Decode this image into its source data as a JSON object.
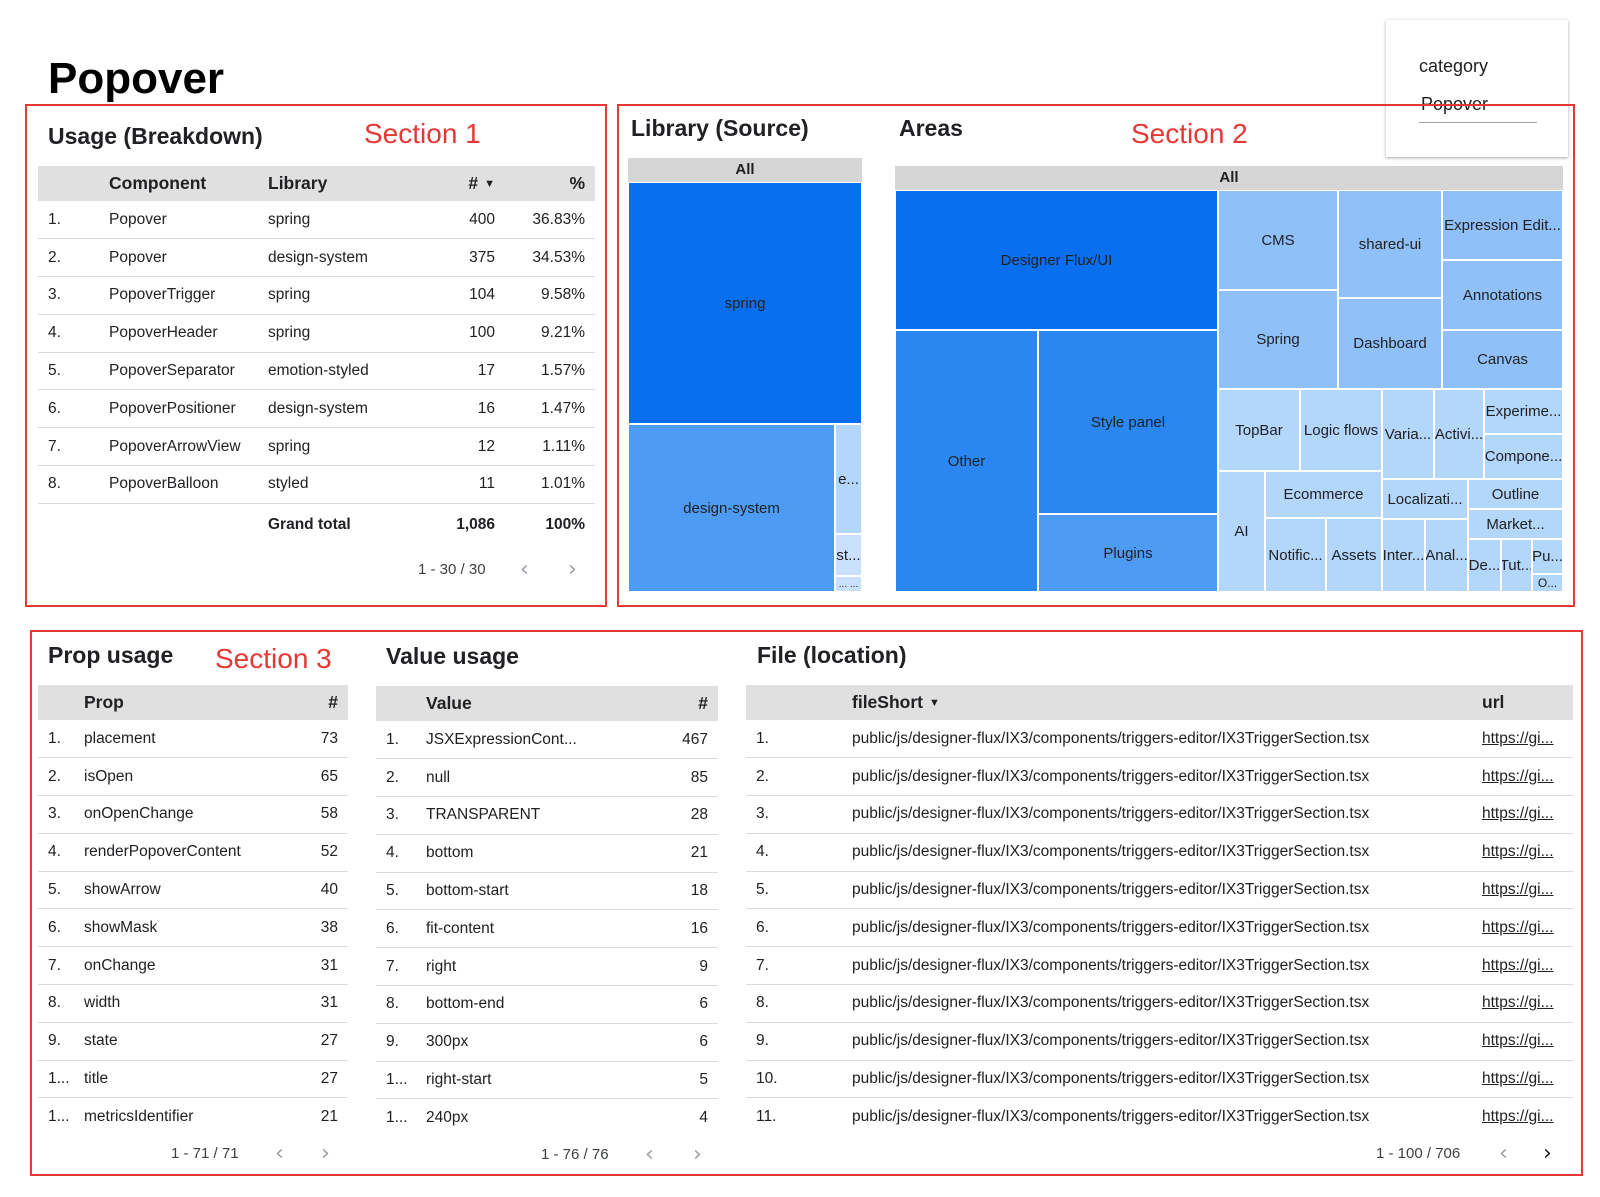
{
  "page": {
    "title": "Popover"
  },
  "filter": {
    "label": "category",
    "value": "Popover"
  },
  "sections": {
    "s1": "Section 1",
    "s2": "Section 2",
    "s3": "Section 3"
  },
  "usage": {
    "title": "Usage (Breakdown)",
    "columns": {
      "component": "Component",
      "library": "Library",
      "count": "#",
      "percent": "%"
    },
    "rows": [
      {
        "idx": "1.",
        "component": "Popover",
        "library": "spring",
        "count": "400",
        "percent": "36.83%"
      },
      {
        "idx": "2.",
        "component": "Popover",
        "library": "design-system",
        "count": "375",
        "percent": "34.53%"
      },
      {
        "idx": "3.",
        "component": "PopoverTrigger",
        "library": "spring",
        "count": "104",
        "percent": "9.58%"
      },
      {
        "idx": "4.",
        "component": "PopoverHeader",
        "library": "spring",
        "count": "100",
        "percent": "9.21%"
      },
      {
        "idx": "5.",
        "component": "PopoverSeparator",
        "library": "emotion-styled",
        "count": "17",
        "percent": "1.57%"
      },
      {
        "idx": "6.",
        "component": "PopoverPositioner",
        "library": "design-system",
        "count": "16",
        "percent": "1.47%"
      },
      {
        "idx": "7.",
        "component": "PopoverArrowView",
        "library": "spring",
        "count": "12",
        "percent": "1.11%"
      },
      {
        "idx": "8.",
        "component": "PopoverBalloon",
        "library": "styled",
        "count": "11",
        "percent": "1.01%"
      }
    ],
    "total": {
      "label": "Grand total",
      "count": "1,086",
      "percent": "100%"
    },
    "pagination": "1 - 30 / 30"
  },
  "library_source": {
    "title": "Library (Source)",
    "root": "All",
    "tiles": {
      "spring": "spring",
      "design_system": "design-system",
      "e": "e...",
      "st": "st...",
      "dots": "... ..."
    }
  },
  "areas": {
    "title": "Areas",
    "root": "All",
    "tiles": {
      "designer_flux": "Designer Flux/UI",
      "other": "Other",
      "style_panel": "Style panel",
      "plugins": "Plugins",
      "cms": "CMS",
      "shared_ui": "shared-ui",
      "expression_edit": "Expression Edit...",
      "annotations": "Annotations",
      "spring": "Spring",
      "dashboard": "Dashboard",
      "canvas": "Canvas",
      "topbar": "TopBar",
      "logic_flows": "Logic flows",
      "varia": "Varia...",
      "activi": "Activi...",
      "experime": "Experime...",
      "compone": "Compone...",
      "ai": "AI",
      "ecommerce": "Ecommerce",
      "localizati": "Localizati...",
      "outline": "Outline",
      "market": "Market...",
      "notific": "Notific...",
      "assets": "Assets",
      "inter": "Inter...",
      "anal": "Anal...",
      "de": "De...",
      "tut": "Tut...",
      "pu": "Pu...",
      "o": "O..."
    }
  },
  "prop_usage": {
    "title": "Prop usage",
    "columns": {
      "prop": "Prop",
      "count": "#"
    },
    "rows": [
      {
        "idx": "1.",
        "name": "placement",
        "count": "73"
      },
      {
        "idx": "2.",
        "name": "isOpen",
        "count": "65"
      },
      {
        "idx": "3.",
        "name": "onOpenChange",
        "count": "58"
      },
      {
        "idx": "4.",
        "name": "renderPopoverContent",
        "count": "52"
      },
      {
        "idx": "5.",
        "name": "showArrow",
        "count": "40"
      },
      {
        "idx": "6.",
        "name": "showMask",
        "count": "38"
      },
      {
        "idx": "7.",
        "name": "onChange",
        "count": "31"
      },
      {
        "idx": "8.",
        "name": "width",
        "count": "31"
      },
      {
        "idx": "9.",
        "name": "state",
        "count": "27"
      },
      {
        "idx": "1...",
        "name": "title",
        "count": "27"
      },
      {
        "idx": "1...",
        "name": "metricsIdentifier",
        "count": "21"
      }
    ],
    "pagination": "1 - 71 / 71"
  },
  "value_usage": {
    "title": "Value usage",
    "columns": {
      "value": "Value",
      "count": "#"
    },
    "rows": [
      {
        "idx": "1.",
        "name": "JSXExpressionCont...",
        "count": "467"
      },
      {
        "idx": "2.",
        "name": "null",
        "count": "85"
      },
      {
        "idx": "3.",
        "name": "TRANSPARENT",
        "count": "28"
      },
      {
        "idx": "4.",
        "name": "bottom",
        "count": "21"
      },
      {
        "idx": "5.",
        "name": "bottom-start",
        "count": "18"
      },
      {
        "idx": "6.",
        "name": "fit-content",
        "count": "16"
      },
      {
        "idx": "7.",
        "name": "right",
        "count": "9"
      },
      {
        "idx": "8.",
        "name": "bottom-end",
        "count": "6"
      },
      {
        "idx": "9.",
        "name": "300px",
        "count": "6"
      },
      {
        "idx": "1...",
        "name": "right-start",
        "count": "5"
      },
      {
        "idx": "1...",
        "name": "240px",
        "count": "4"
      }
    ],
    "pagination": "1 - 76 / 76"
  },
  "file_location": {
    "title": "File (location)",
    "columns": {
      "file": "fileShort",
      "url": "url"
    },
    "rows": [
      {
        "idx": "1.",
        "file": "public/js/designer-flux/IX3/components/triggers-editor/IX3TriggerSection.tsx",
        "url": "https://gi..."
      },
      {
        "idx": "2.",
        "file": "public/js/designer-flux/IX3/components/triggers-editor/IX3TriggerSection.tsx",
        "url": "https://gi..."
      },
      {
        "idx": "3.",
        "file": "public/js/designer-flux/IX3/components/triggers-editor/IX3TriggerSection.tsx",
        "url": "https://gi..."
      },
      {
        "idx": "4.",
        "file": "public/js/designer-flux/IX3/components/triggers-editor/IX3TriggerSection.tsx",
        "url": "https://gi..."
      },
      {
        "idx": "5.",
        "file": "public/js/designer-flux/IX3/components/triggers-editor/IX3TriggerSection.tsx",
        "url": "https://gi..."
      },
      {
        "idx": "6.",
        "file": "public/js/designer-flux/IX3/components/triggers-editor/IX3TriggerSection.tsx",
        "url": "https://gi..."
      },
      {
        "idx": "7.",
        "file": "public/js/designer-flux/IX3/components/triggers-editor/IX3TriggerSection.tsx",
        "url": "https://gi..."
      },
      {
        "idx": "8.",
        "file": "public/js/designer-flux/IX3/components/triggers-editor/IX3TriggerSection.tsx",
        "url": "https://gi..."
      },
      {
        "idx": "9.",
        "file": "public/js/designer-flux/IX3/components/triggers-editor/IX3TriggerSection.tsx",
        "url": "https://gi..."
      },
      {
        "idx": "10.",
        "file": "public/js/designer-flux/IX3/components/triggers-editor/IX3TriggerSection.tsx",
        "url": "https://gi..."
      },
      {
        "idx": "11.",
        "file": "public/js/designer-flux/IX3/components/triggers-editor/IX3TriggerSection.tsx",
        "url": "https://gi..."
      }
    ],
    "pagination": "1 - 100 / 706"
  },
  "icons": {
    "sort": "sort-desc-icon",
    "prev": "chevron-left-icon",
    "next": "chevron-right-icon"
  }
}
